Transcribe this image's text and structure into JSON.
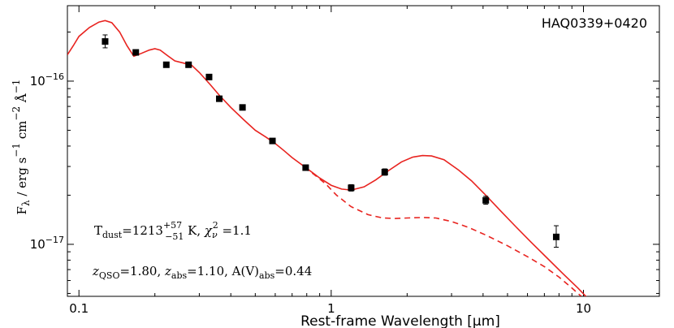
{
  "chart_data": {
    "type": "scatter",
    "title": "HAQ0339+0420",
    "xlabel": "Rest-frame Wavelength [μm]",
    "ylabel": "F_λ / erg s^-1 cm^-2 Å^-1",
    "xscale": "log",
    "yscale": "log",
    "xlim": [
      0.09,
      20
    ],
    "ylim": [
      4.8e-18,
      2.9e-16
    ],
    "x_ticks": [
      {
        "value": 0.1,
        "label": "0.1"
      },
      {
        "value": 1,
        "label": "1"
      },
      {
        "value": 10,
        "label": "10"
      }
    ],
    "y_ticks": [
      {
        "value": 1e-17,
        "base": "10",
        "exp": "−17"
      },
      {
        "value": 1e-16,
        "base": "10",
        "exp": "−16"
      }
    ],
    "series": [
      {
        "name": "photometry",
        "style": "squares with error bars",
        "color": "#000000",
        "points": [
          {
            "x": 0.127,
            "y": 1.75e-16,
            "yerr": [
              1.6e-16,
              1.92e-16
            ]
          },
          {
            "x": 0.168,
            "y": 1.5e-16
          },
          {
            "x": 0.222,
            "y": 1.26e-16
          },
          {
            "x": 0.272,
            "y": 1.26e-16
          },
          {
            "x": 0.328,
            "y": 1.06e-16
          },
          {
            "x": 0.36,
            "y": 7.8e-17
          },
          {
            "x": 0.445,
            "y": 6.9e-17
          },
          {
            "x": 0.585,
            "y": 4.3e-17
          },
          {
            "x": 0.792,
            "y": 2.95e-17
          },
          {
            "x": 1.2,
            "y": 2.22e-17,
            "yerr": [
              2.12e-17,
              2.32e-17
            ]
          },
          {
            "x": 1.63,
            "y": 2.77e-17,
            "yerr": [
              2.65e-17,
              2.9e-17
            ]
          },
          {
            "x": 4.1,
            "y": 1.86e-17,
            "yerr": [
              1.76e-17,
              1.97e-17
            ]
          },
          {
            "x": 7.8,
            "y": 1.11e-17,
            "yerr": [
              9.6e-18,
              1.3e-17
            ]
          }
        ]
      },
      {
        "name": "model with hot dust",
        "style": "solid",
        "color": "#e8231f",
        "points": [
          {
            "x": 0.09,
            "y": 1.45e-16
          },
          {
            "x": 0.095,
            "y": 1.65e-16
          },
          {
            "x": 0.1,
            "y": 1.88e-16
          },
          {
            "x": 0.11,
            "y": 2.13e-16
          },
          {
            "x": 0.12,
            "y": 2.3e-16
          },
          {
            "x": 0.127,
            "y": 2.35e-16
          },
          {
            "x": 0.135,
            "y": 2.28e-16
          },
          {
            "x": 0.145,
            "y": 2e-16
          },
          {
            "x": 0.155,
            "y": 1.65e-16
          },
          {
            "x": 0.165,
            "y": 1.42e-16
          },
          {
            "x": 0.175,
            "y": 1.47e-16
          },
          {
            "x": 0.19,
            "y": 1.55e-16
          },
          {
            "x": 0.2,
            "y": 1.58e-16
          },
          {
            "x": 0.21,
            "y": 1.55e-16
          },
          {
            "x": 0.225,
            "y": 1.43e-16
          },
          {
            "x": 0.24,
            "y": 1.33e-16
          },
          {
            "x": 0.26,
            "y": 1.29e-16
          },
          {
            "x": 0.28,
            "y": 1.25e-16
          },
          {
            "x": 0.3,
            "y": 1.13e-16
          },
          {
            "x": 0.33,
            "y": 9.6e-17
          },
          {
            "x": 0.36,
            "y": 8.2e-17
          },
          {
            "x": 0.4,
            "y": 6.9e-17
          },
          {
            "x": 0.45,
            "y": 5.8e-17
          },
          {
            "x": 0.5,
            "y": 5e-17
          },
          {
            "x": 0.55,
            "y": 4.55e-17
          },
          {
            "x": 0.6,
            "y": 4.15e-17
          },
          {
            "x": 0.65,
            "y": 3.75e-17
          },
          {
            "x": 0.7,
            "y": 3.4e-17
          },
          {
            "x": 0.8,
            "y": 2.92e-17
          },
          {
            "x": 0.9,
            "y": 2.55e-17
          },
          {
            "x": 1.0,
            "y": 2.3e-17
          },
          {
            "x": 1.1,
            "y": 2.18e-17
          },
          {
            "x": 1.2,
            "y": 2.15e-17
          },
          {
            "x": 1.35,
            "y": 2.25e-17
          },
          {
            "x": 1.5,
            "y": 2.48e-17
          },
          {
            "x": 1.7,
            "y": 2.85e-17
          },
          {
            "x": 1.9,
            "y": 3.2e-17
          },
          {
            "x": 2.1,
            "y": 3.42e-17
          },
          {
            "x": 2.3,
            "y": 3.5e-17
          },
          {
            "x": 2.5,
            "y": 3.48e-17
          },
          {
            "x": 2.8,
            "y": 3.3e-17
          },
          {
            "x": 3.2,
            "y": 2.85e-17
          },
          {
            "x": 3.6,
            "y": 2.45e-17
          },
          {
            "x": 4.1,
            "y": 2e-17
          },
          {
            "x": 4.7,
            "y": 1.6e-17
          },
          {
            "x": 5.4,
            "y": 1.28e-17
          },
          {
            "x": 6.2,
            "y": 1.03e-17
          },
          {
            "x": 7.2,
            "y": 8.2e-18
          },
          {
            "x": 8.3,
            "y": 6.6e-18
          },
          {
            "x": 9.5,
            "y": 5.4e-18
          },
          {
            "x": 10.5,
            "y": 4.6e-18
          }
        ]
      },
      {
        "name": "model without hot dust",
        "style": "dashed",
        "color": "#e8231f",
        "points": [
          {
            "x": 0.78,
            "y": 2.95e-17
          },
          {
            "x": 0.85,
            "y": 2.7e-17
          },
          {
            "x": 0.95,
            "y": 2.35e-17
          },
          {
            "x": 1.05,
            "y": 2e-17
          },
          {
            "x": 1.2,
            "y": 1.7e-17
          },
          {
            "x": 1.4,
            "y": 1.52e-17
          },
          {
            "x": 1.6,
            "y": 1.45e-17
          },
          {
            "x": 1.8,
            "y": 1.44e-17
          },
          {
            "x": 2.0,
            "y": 1.45e-17
          },
          {
            "x": 2.3,
            "y": 1.46e-17
          },
          {
            "x": 2.6,
            "y": 1.45e-17
          },
          {
            "x": 3.0,
            "y": 1.38e-17
          },
          {
            "x": 3.5,
            "y": 1.27e-17
          },
          {
            "x": 4.1,
            "y": 1.14e-17
          },
          {
            "x": 5.0,
            "y": 9.8e-18
          },
          {
            "x": 6.0,
            "y": 8.4e-18
          },
          {
            "x": 7.0,
            "y": 7.3e-18
          },
          {
            "x": 8.0,
            "y": 6.3e-18
          },
          {
            "x": 9.0,
            "y": 5.4e-18
          },
          {
            "x": 9.8,
            "y": 4.8e-18
          }
        ]
      }
    ],
    "annotations": {
      "object_name": "HAQ0339+0420",
      "tdust": {
        "prefix": "T",
        "sub": "dust",
        "mid": "=1213",
        "sup": "+57",
        "lo": "−51",
        "unit": " K, ",
        "chi": "χ",
        "nu": "ν",
        "two": "2",
        "val": " =1.1"
      },
      "redshift": {
        "z1": "z",
        "s1": "QSO",
        "v1": "=1.80, ",
        "z2": "z",
        "s2": "abs",
        "v2": "=1.10,  A(V)",
        "s3": "abs",
        "v3": "=0.44"
      }
    },
    "legend": "none",
    "grid": false
  }
}
